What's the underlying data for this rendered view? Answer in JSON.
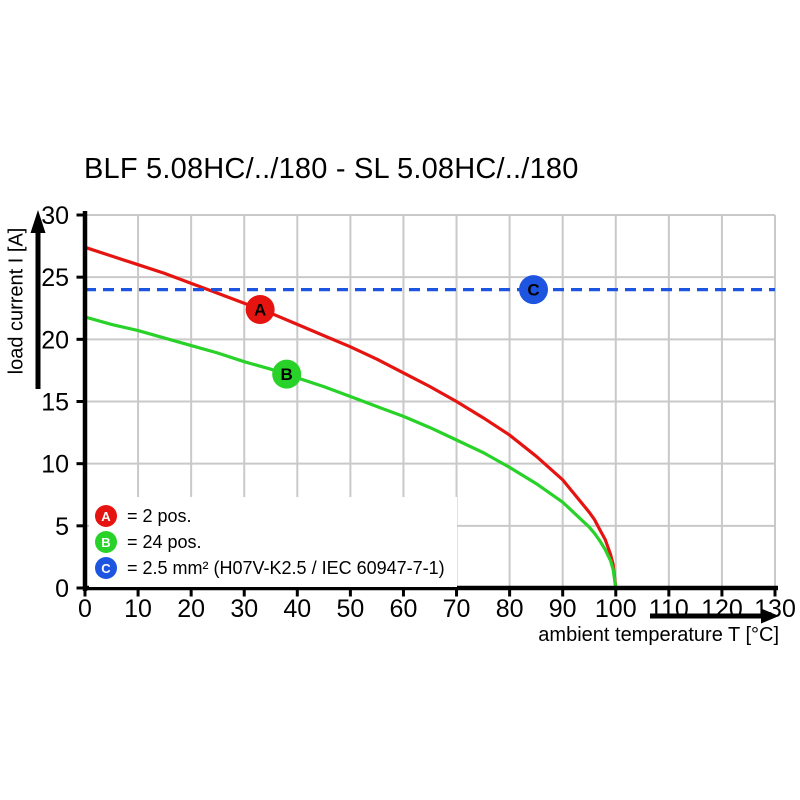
{
  "title": "BLF 5.08HC/../180 - SL 5.08HC/../180",
  "colors": {
    "background": "#ffffff",
    "axis": "#000000",
    "grid": "#c9c9c9",
    "series_a_red": "#e61410",
    "series_b_green": "#28d228",
    "series_c_blue": "#1d55e0",
    "marker_letter": "#ffffff"
  },
  "chart_data": {
    "type": "line",
    "title": "BLF 5.08HC/../180 - SL 5.08HC/../180",
    "xlabel": "ambient temperature T [°C]",
    "ylabel": "load current I [A]",
    "xlim": [
      0,
      130
    ],
    "ylim": [
      0,
      30
    ],
    "x_ticks": [
      0,
      10,
      20,
      30,
      40,
      50,
      60,
      70,
      80,
      90,
      100,
      110,
      120,
      130
    ],
    "y_ticks": [
      0,
      5,
      10,
      15,
      20,
      25,
      30
    ],
    "grid": true,
    "grid_color": "#c9c9c9",
    "legend_position": "bottom-left",
    "series": [
      {
        "name": "A",
        "legend_label": "= 2 pos.",
        "color": "#e61410",
        "style": "solid",
        "marker": {
          "t": 33,
          "i": 22.4
        },
        "points": [
          [
            0,
            27.4
          ],
          [
            5,
            26.7
          ],
          [
            10,
            26.0
          ],
          [
            15,
            25.3
          ],
          [
            20,
            24.5
          ],
          [
            25,
            23.7
          ],
          [
            30,
            22.9
          ],
          [
            35,
            22.1
          ],
          [
            40,
            21.2
          ],
          [
            45,
            20.3
          ],
          [
            50,
            19.4
          ],
          [
            55,
            18.4
          ],
          [
            60,
            17.3
          ],
          [
            65,
            16.2
          ],
          [
            70,
            15.0
          ],
          [
            75,
            13.7
          ],
          [
            80,
            12.3
          ],
          [
            85,
            10.6
          ],
          [
            90,
            8.7
          ],
          [
            95,
            6.1
          ],
          [
            96,
            5.5
          ],
          [
            97,
            4.7
          ],
          [
            98,
            3.9
          ],
          [
            99,
            2.7
          ],
          [
            99.5,
            1.9
          ],
          [
            100,
            0
          ]
        ]
      },
      {
        "name": "B",
        "legend_label": "= 24 pos.",
        "color": "#28d228",
        "style": "solid",
        "marker": {
          "t": 38,
          "i": 17.2
        },
        "points": [
          [
            0,
            21.8
          ],
          [
            5,
            21.2
          ],
          [
            10,
            20.7
          ],
          [
            15,
            20.1
          ],
          [
            20,
            19.5
          ],
          [
            25,
            18.9
          ],
          [
            30,
            18.2
          ],
          [
            35,
            17.6
          ],
          [
            40,
            16.9
          ],
          [
            45,
            16.2
          ],
          [
            50,
            15.4
          ],
          [
            55,
            14.6
          ],
          [
            60,
            13.8
          ],
          [
            65,
            12.9
          ],
          [
            70,
            11.9
          ],
          [
            75,
            10.9
          ],
          [
            80,
            9.7
          ],
          [
            85,
            8.4
          ],
          [
            90,
            6.9
          ],
          [
            95,
            4.9
          ],
          [
            96,
            4.4
          ],
          [
            97,
            3.8
          ],
          [
            98,
            3.1
          ],
          [
            99,
            2.2
          ],
          [
            99.5,
            1.5
          ],
          [
            100,
            0
          ]
        ]
      },
      {
        "name": "C",
        "legend_label": "= 2.5 mm² (H07V-K2.5 / IEC 60947-7-1)",
        "color": "#1d55e0",
        "style": "dashed",
        "marker": {
          "t": 84.5,
          "i": 24
        },
        "points": [
          [
            0,
            24
          ],
          [
            130,
            24
          ]
        ]
      }
    ]
  }
}
